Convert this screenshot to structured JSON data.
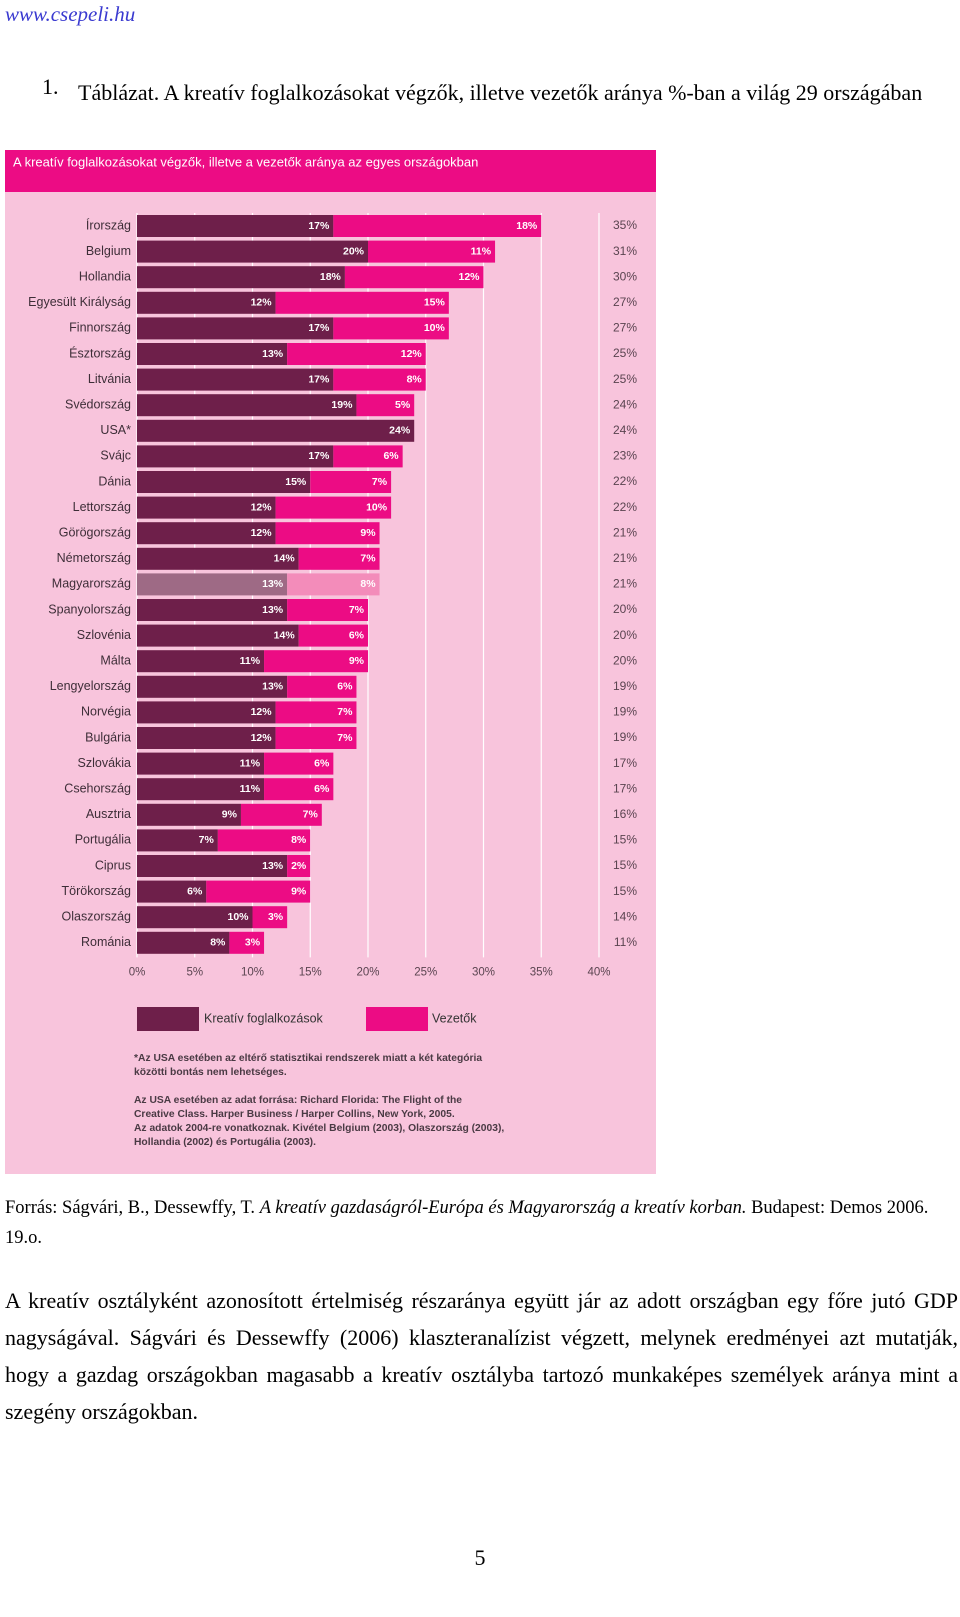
{
  "header": {
    "site": "www.csepeli.hu"
  },
  "caption": {
    "number": "1.",
    "text": "Táblázat. A kreatív foglalkozásokat végzők, illetve vezetők aránya %-ban a világ 29 országában"
  },
  "chart_data": {
    "type": "bar",
    "stacked": true,
    "orientation": "horizontal",
    "title": "A kreatív foglalkozásokat végzők, illetve a vezetők aránya az egyes országokban",
    "categories": [
      "Írország",
      "Belgium",
      "Hollandia",
      "Egyesült Királyság",
      "Finnország",
      "Észtország",
      "Litvánia",
      "Svédország",
      "USA*",
      "Svájc",
      "Dánia",
      "Lettország",
      "Görögország",
      "Németország",
      "Magyarország",
      "Spanyolország",
      "Szlovénia",
      "Málta",
      "Lengyelország",
      "Norvégia",
      "Bulgária",
      "Szlovákia",
      "Csehország",
      "Ausztria",
      "Portugália",
      "Ciprus",
      "Törökország",
      "Olaszország",
      "Románia"
    ],
    "series": [
      {
        "name": "Kreatív foglalkozások",
        "values": [
          17,
          20,
          18,
          12,
          17,
          13,
          17,
          19,
          24,
          17,
          15,
          12,
          12,
          14,
          13,
          13,
          14,
          11,
          13,
          12,
          12,
          11,
          11,
          9,
          7,
          13,
          6,
          10,
          8
        ]
      },
      {
        "name": "Vezetők",
        "values": [
          18,
          11,
          12,
          15,
          10,
          12,
          8,
          5,
          null,
          6,
          7,
          10,
          9,
          7,
          8,
          7,
          6,
          9,
          6,
          7,
          7,
          6,
          6,
          7,
          8,
          2,
          9,
          3,
          3
        ]
      }
    ],
    "value_labels": {
      "creative": [
        "17%",
        "20%",
        "18%",
        "12%",
        "17%",
        "13%",
        "17%",
        "19%",
        "24%",
        "17%",
        "15%",
        "12%",
        "12%",
        "14%",
        "13%",
        "13%",
        "14%",
        "11%",
        "13%",
        "12%",
        "12%",
        "11%",
        "11%",
        "9%",
        "7%",
        "13%",
        "6%",
        "10%",
        "8%"
      ],
      "leaders": [
        "18%",
        "11%",
        "12%",
        "15%",
        "10%",
        "12%",
        "8%",
        "5%",
        "",
        "6%",
        "7%",
        "10%",
        "9%",
        "7%",
        "8%",
        "7%",
        "6%",
        "9%",
        "6%",
        "7%",
        "7%",
        "6%",
        "6%",
        "7%",
        "8%",
        "2%",
        "9%",
        "3%",
        "3%"
      ]
    },
    "totals": [
      "35%",
      "31%",
      "30%",
      "27%",
      "27%",
      "25%",
      "25%",
      "24%",
      "24%",
      "23%",
      "22%",
      "22%",
      "21%",
      "21%",
      "21%",
      "20%",
      "20%",
      "20%",
      "19%",
      "19%",
      "19%",
      "17%",
      "17%",
      "16%",
      "15%",
      "15%",
      "15%",
      "14%",
      "11%"
    ],
    "highlight_category": "Magyarország",
    "xticks": [
      "0%",
      "5%",
      "10%",
      "15%",
      "20%",
      "25%",
      "30%",
      "35%",
      "40%"
    ],
    "xlim": [
      0,
      40
    ],
    "legend": [
      "Kreatív foglalkozások",
      "Vezetők"
    ],
    "legend_position": "bottom",
    "notes": [
      "*Az USA esetében az eltérő statisztikai rendszerek miatt a két kategória",
      "közötti bontás nem lehetséges.",
      "Az USA esetében az adat forrása: Richard Florida: The Flight of the",
      "Creative Class. Harper Business / Harper Collins, New York, 2005.",
      "Az adatok 2004-re vonatkoznak. Kivétel Belgium (2003), Olaszország (2003),",
      "Hollandia (2002) és Portugália (2003)."
    ],
    "colors": {
      "background": "#f8c4dc",
      "title_bar": "#ec0c84",
      "creative": "#6e1f4a",
      "leaders": "#ec0c84",
      "creative_highlight": "#9e6a85",
      "leaders_highlight": "#f38cba"
    }
  },
  "source": {
    "prefix": "Forrás: Ságvári, B., Dessewffy, T. ",
    "title": "A kreatív gazdaságról-Európa és Magyarország a kreatív korban.",
    "suffix": " Budapest: Demos 2006. 19.o."
  },
  "body_text": "A kreatív osztályként azonosított értelmiség részaránya együtt jár az adott országban egy főre jutó GDP nagyságával. Ságvári és Dessewffy (2006) klaszteranalízist végzett, melynek eredményei azt mutatják, hogy a gazdag országokban magasabb a kreatív osztályba tartozó munkaképes személyek aránya mint a szegény országokban.",
  "page_number": "5"
}
